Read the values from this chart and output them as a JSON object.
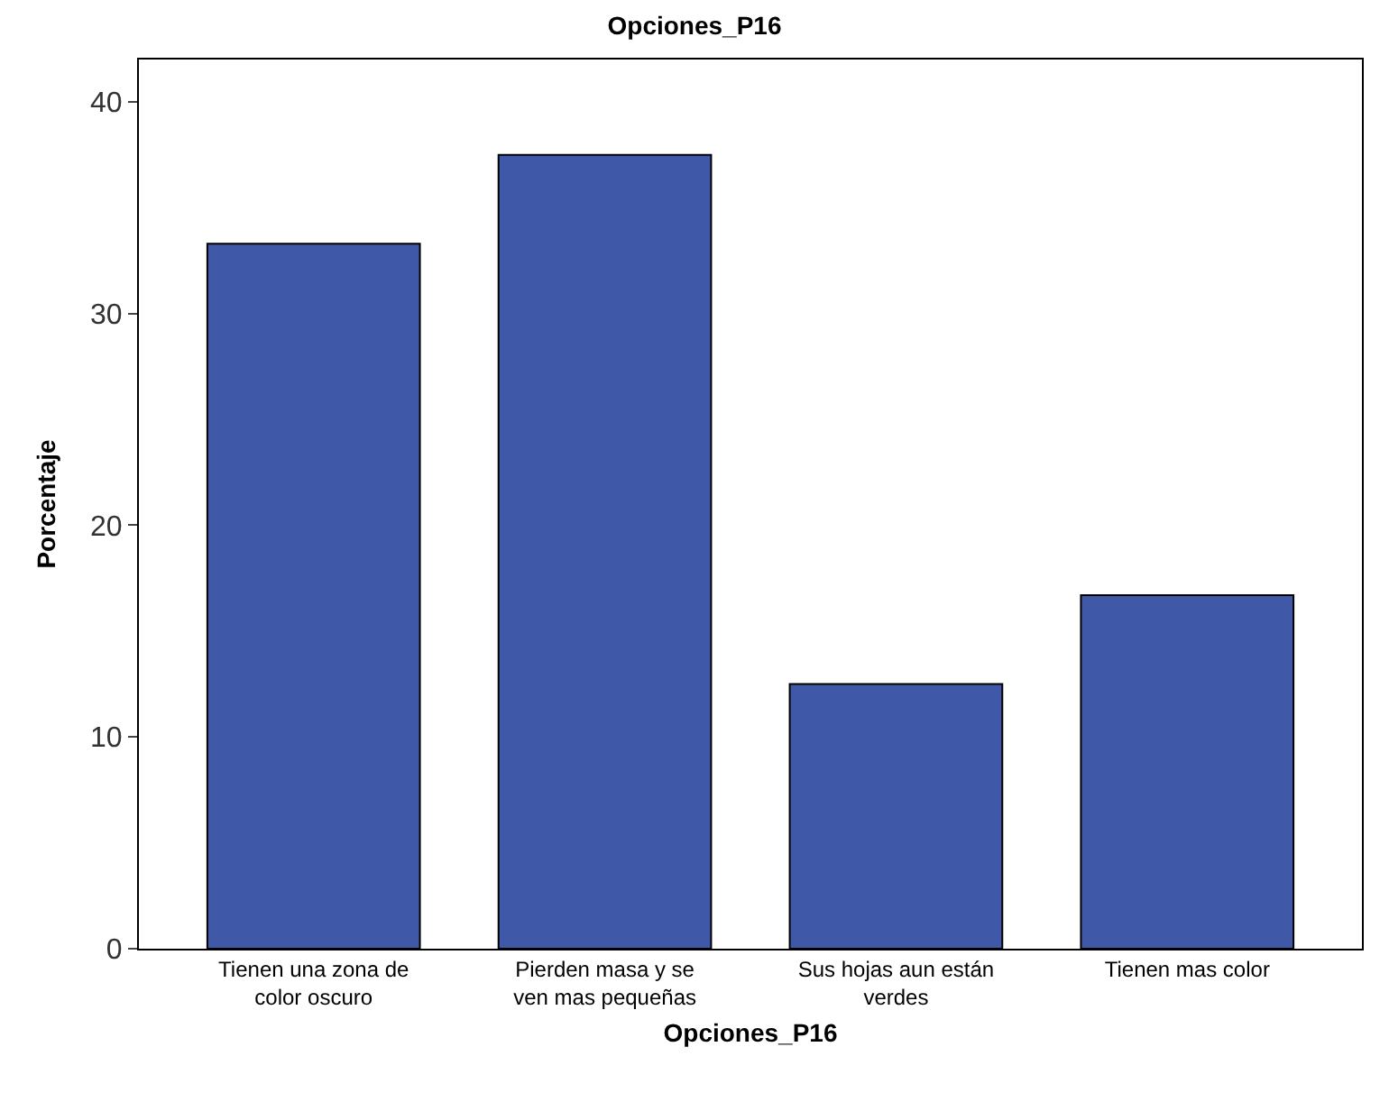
{
  "chart_data": {
    "type": "bar",
    "title": "Opciones_P16",
    "xlabel": "Opciones_P16",
    "ylabel": "Porcentaje",
    "categories": [
      "Tienen una zona de\ncolor oscuro",
      "Pierden masa y se\nven mas pequeñas",
      "Sus hojas aun están\nverdes",
      "Tienen mas color"
    ],
    "values": [
      33.3,
      37.5,
      12.5,
      16.7
    ],
    "color": "#3f58a8",
    "ylim": [
      0,
      42
    ],
    "yticks": [
      0,
      10,
      20,
      30,
      40
    ]
  }
}
